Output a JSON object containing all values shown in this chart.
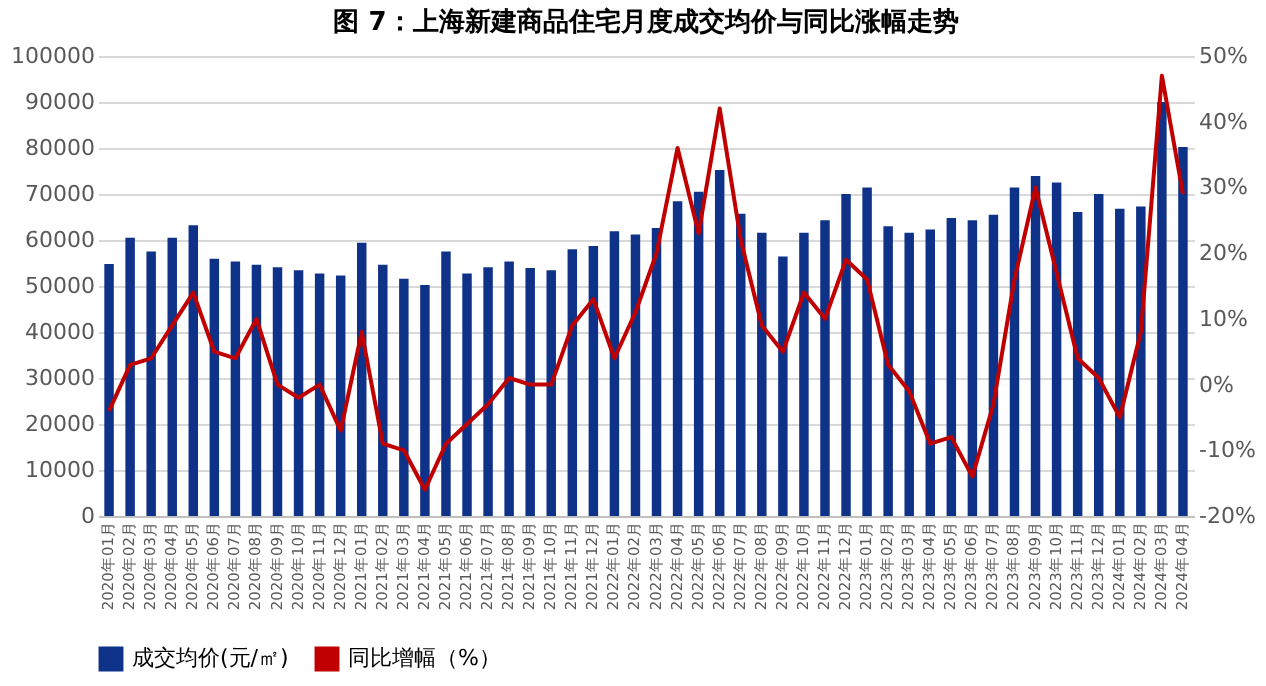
{
  "chart_data": {
    "type": "bar",
    "title": "图 7：上海新建商品住宅月度成交均价与同比涨幅走势",
    "categories": [
      "2020年01月",
      "2020年02月",
      "2020年03月",
      "2020年04月",
      "2020年05月",
      "2020年06月",
      "2020年07月",
      "2020年08月",
      "2020年09月",
      "2020年10月",
      "2020年11月",
      "2020年12月",
      "2021年01月",
      "2021年02月",
      "2021年03月",
      "2021年04月",
      "2021年05月",
      "2021年06月",
      "2021年07月",
      "2021年08月",
      "2021年09月",
      "2021年10月",
      "2021年11月",
      "2021年12月",
      "2022年01月",
      "2022年02月",
      "2022年03月",
      "2022年04月",
      "2022年05月",
      "2022年06月",
      "2022年07月",
      "2022年08月",
      "2022年09月",
      "2022年10月",
      "2022年11月",
      "2022年12月",
      "2023年01月",
      "2023年02月",
      "2023年03月",
      "2023年04月",
      "2023年05月",
      "2023年06月",
      "2023年07月",
      "2023年08月",
      "2023年09月",
      "2023年10月",
      "2023年11月",
      "2023年12月",
      "2024年01月",
      "2024年02月",
      "2024年03月",
      "2024年04月"
    ],
    "series": [
      {
        "name": "成交均价(元/㎡)",
        "color": "#0f3289",
        "values": [
          54800,
          60500,
          57500,
          60500,
          63200,
          55900,
          55300,
          54600,
          54100,
          53400,
          52700,
          52300,
          59400,
          54600,
          51600,
          50200,
          57500,
          52700,
          54100,
          55300,
          53900,
          53400,
          58000,
          58700,
          61900,
          61200,
          62600,
          68400,
          70500,
          75200,
          65700,
          61600,
          56400,
          61600,
          64300,
          70000,
          71400,
          63000,
          61600,
          62300,
          64800,
          64300,
          65500,
          71400,
          73900,
          72500,
          66100,
          70000,
          66800,
          67300,
          90000,
          80200
        ]
      },
      {
        "name": "同比增幅（%）",
        "type": "line",
        "axis": "y2",
        "color": "#c00000",
        "values": [
          -4,
          3,
          4,
          9,
          14,
          5,
          4,
          10,
          0,
          -2,
          0,
          -7,
          8,
          -9,
          -10,
          -16,
          -9,
          -6,
          -3,
          1,
          0,
          0,
          9,
          13,
          4,
          11,
          20,
          36,
          23,
          42,
          22,
          9,
          5,
          14,
          10,
          19,
          16,
          3,
          -1,
          -9,
          -8,
          -14,
          -3,
          16,
          30,
          17,
          4,
          1,
          -5,
          8,
          47,
          29
        ]
      }
    ],
    "ylim": [
      0,
      100000
    ],
    "yticks": [
      0,
      10000,
      20000,
      30000,
      40000,
      50000,
      60000,
      70000,
      80000,
      90000,
      100000
    ],
    "y2lim": [
      -20,
      50
    ],
    "y2ticks": [
      {
        "value": -20,
        "label": "-20%"
      },
      {
        "value": -10,
        "label": "-10%"
      },
      {
        "value": 0,
        "label": "0%"
      },
      {
        "value": 10,
        "label": "10%"
      },
      {
        "value": 20,
        "label": "20%"
      },
      {
        "value": 30,
        "label": "30%"
      },
      {
        "value": 40,
        "label": "40%"
      },
      {
        "value": 50,
        "label": "50%"
      }
    ],
    "grid": "y",
    "legend": "bottom",
    "marker": "none",
    "line_style": "solid"
  }
}
